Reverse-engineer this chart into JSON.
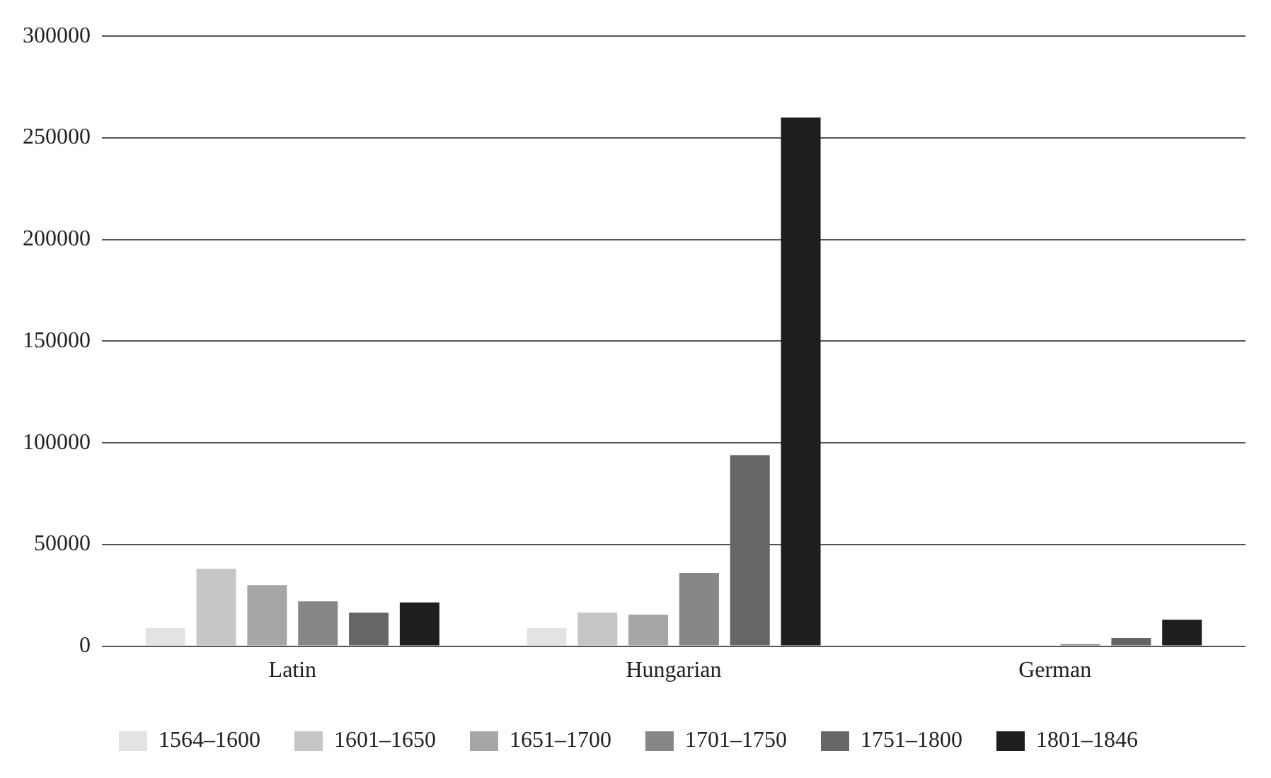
{
  "chart_data": {
    "type": "bar",
    "categories": [
      "Latin",
      "Hungarian",
      "German"
    ],
    "series": [
      {
        "name": "1564–1600",
        "color": "#e3e3e3",
        "values": [
          9000,
          9000,
          null
        ]
      },
      {
        "name": "1601–1650",
        "color": "#c6c6c6",
        "values": [
          38000,
          16500,
          null
        ]
      },
      {
        "name": "1651–1700",
        "color": "#a6a6a6",
        "values": [
          30000,
          15500,
          null
        ]
      },
      {
        "name": "1701–1750",
        "color": "#878787",
        "values": [
          22000,
          36000,
          1000
        ]
      },
      {
        "name": "1751–1800",
        "color": "#666666",
        "values": [
          16500,
          94000,
          4000
        ]
      },
      {
        "name": "1801–1846",
        "color": "#1e1e1e",
        "values": [
          21500,
          260000,
          13000
        ]
      }
    ],
    "ylim": [
      0,
      300000
    ],
    "yticks": [
      0,
      50000,
      100000,
      150000,
      200000,
      250000,
      300000
    ],
    "grid": "y",
    "legend": "bottom"
  }
}
